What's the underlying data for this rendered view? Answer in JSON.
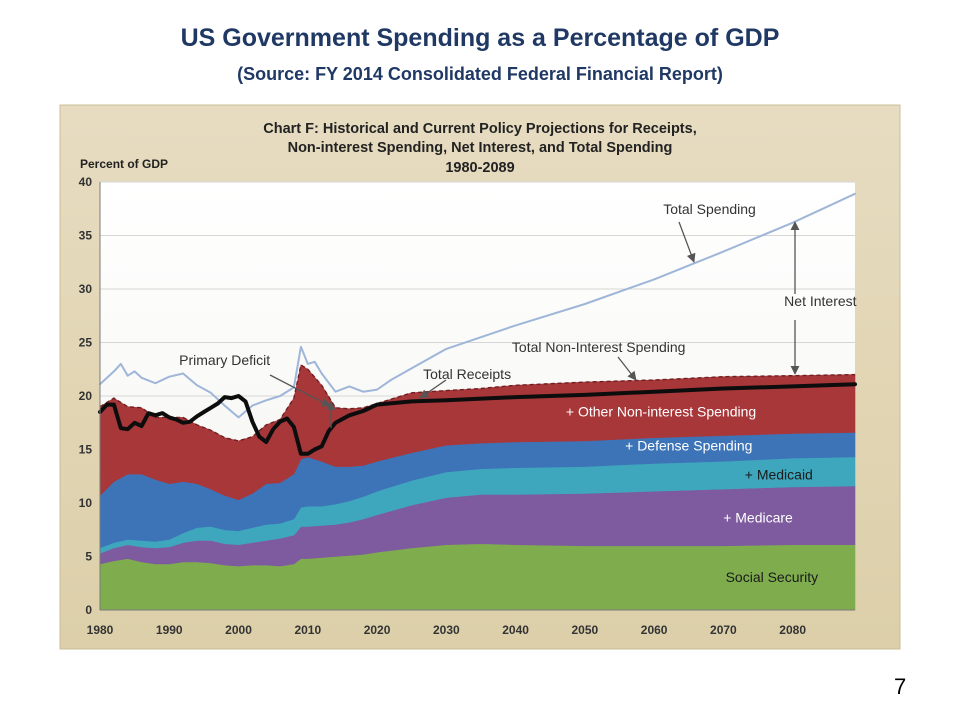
{
  "slide": {
    "title": "US Government Spending as a Percentage of GDP",
    "subtitle": "(Source: FY 2014 Consolidated Federal Financial Report)",
    "page_number": "7"
  },
  "chart_data": {
    "type": "area",
    "title_lines": [
      "Chart F:  Historical and Current Policy Projections for Receipts,",
      "Non-interest Spending, Net Interest, and Total Spending",
      "1980-2089"
    ],
    "ylabel": "Percent of GDP",
    "xlabel": "",
    "xlim": [
      1980,
      2089
    ],
    "ylim": [
      0,
      40
    ],
    "y_ticks": [
      0,
      5,
      10,
      15,
      20,
      25,
      30,
      35,
      40
    ],
    "x_ticks": [
      1980,
      1990,
      2000,
      2010,
      2020,
      2030,
      2040,
      2050,
      2060,
      2070,
      2080
    ],
    "stack_x": [
      1980,
      1982,
      1984,
      1986,
      1988,
      1990,
      1992,
      1994,
      1996,
      1998,
      2000,
      2002,
      2004,
      2006,
      2008,
      2009,
      2010,
      2012,
      2014,
      2016,
      2018,
      2020,
      2025,
      2030,
      2035,
      2040,
      2050,
      2060,
      2070,
      2080,
      2089
    ],
    "stacked_series": [
      {
        "name": "Social Security",
        "color": "#7fad4e",
        "values": [
          4.3,
          4.6,
          4.8,
          4.5,
          4.3,
          4.3,
          4.5,
          4.5,
          4.4,
          4.2,
          4.1,
          4.2,
          4.2,
          4.1,
          4.3,
          4.8,
          4.8,
          4.9,
          5.0,
          5.1,
          5.2,
          5.4,
          5.8,
          6.1,
          6.2,
          6.1,
          6.0,
          6.0,
          6.0,
          6.1,
          6.1
        ]
      },
      {
        "name": "+  Medicare",
        "color": "#7d5b9e",
        "values": [
          1.0,
          1.2,
          1.3,
          1.4,
          1.5,
          1.6,
          1.8,
          2.0,
          2.1,
          2.0,
          2.0,
          2.1,
          2.3,
          2.6,
          2.7,
          3.0,
          3.0,
          3.0,
          3.0,
          3.1,
          3.3,
          3.5,
          4.0,
          4.4,
          4.6,
          4.7,
          4.9,
          5.1,
          5.3,
          5.4,
          5.5
        ]
      },
      {
        "name": "+ Medicaid",
        "color": "#3fa7bd",
        "values": [
          0.5,
          0.5,
          0.5,
          0.6,
          0.6,
          0.7,
          0.9,
          1.2,
          1.3,
          1.3,
          1.3,
          1.4,
          1.5,
          1.4,
          1.5,
          1.8,
          1.9,
          1.8,
          1.9,
          2.0,
          2.1,
          2.2,
          2.3,
          2.4,
          2.4,
          2.5,
          2.5,
          2.6,
          2.6,
          2.7,
          2.7
        ]
      },
      {
        "name": "+ Defense Spending",
        "color": "#3d74b8",
        "values": [
          4.9,
          5.7,
          6.1,
          6.2,
          5.8,
          5.2,
          4.8,
          4.1,
          3.5,
          3.2,
          2.9,
          3.2,
          3.8,
          3.8,
          4.2,
          4.5,
          4.6,
          4.2,
          3.5,
          3.2,
          2.9,
          2.8,
          2.6,
          2.5,
          2.4,
          2.4,
          2.4,
          2.4,
          2.4,
          2.3,
          2.3
        ]
      },
      {
        "name": "+ Other Non-interest Spending",
        "color": "#a8373a",
        "values": [
          8.3,
          7.8,
          6.3,
          6.2,
          5.8,
          6.2,
          6.0,
          5.5,
          5.5,
          5.4,
          5.5,
          5.3,
          5.5,
          5.9,
          7.1,
          8.8,
          8.2,
          7.1,
          5.5,
          5.4,
          5.4,
          5.4,
          5.6,
          5.1,
          5.1,
          5.3,
          5.5,
          5.4,
          5.5,
          5.4,
          5.4
        ]
      }
    ],
    "total_receipts": {
      "name": "Total Receipts",
      "color": "#0d0d0d",
      "x": [
        1980,
        1981,
        1982,
        1983,
        1984,
        1985,
        1986,
        1987,
        1988,
        1989,
        1990,
        1991,
        1992,
        1993,
        1994,
        1995,
        1996,
        1997,
        1998,
        1999,
        2000,
        2001,
        2002,
        2003,
        2004,
        2005,
        2006,
        2007,
        2008,
        2009,
        2010,
        2011,
        2012,
        2013,
        2014,
        2016,
        2018,
        2020,
        2025,
        2030,
        2040,
        2050,
        2060,
        2070,
        2080,
        2089
      ],
      "values": [
        18.5,
        19.2,
        19.2,
        17.0,
        16.9,
        17.5,
        17.2,
        18.4,
        18.2,
        18.4,
        18.0,
        17.8,
        17.5,
        17.6,
        18.1,
        18.5,
        18.9,
        19.3,
        19.9,
        19.8,
        20.0,
        19.5,
        17.6,
        16.2,
        15.7,
        16.9,
        17.6,
        17.9,
        17.1,
        14.6,
        14.6,
        15.0,
        15.3,
        16.7,
        17.5,
        18.2,
        18.6,
        19.2,
        19.5,
        19.6,
        19.9,
        20.1,
        20.4,
        20.7,
        20.9,
        21.1
      ]
    },
    "total_spending": {
      "name": "Total Spending",
      "color": "#9fb6d9",
      "x": [
        1980,
        1982,
        1983,
        1984,
        1985,
        1986,
        1988,
        1990,
        1992,
        1994,
        1996,
        1998,
        2000,
        2002,
        2004,
        2006,
        2008,
        2009,
        2010,
        2011,
        2012,
        2014,
        2016,
        2018,
        2020,
        2022,
        2025,
        2030,
        2040,
        2050,
        2060,
        2070,
        2080,
        2089
      ],
      "values": [
        21.1,
        22.3,
        23.0,
        21.9,
        22.3,
        21.7,
        21.2,
        21.8,
        22.1,
        21.0,
        20.3,
        19.1,
        18.0,
        19.1,
        19.6,
        20.0,
        20.8,
        24.6,
        23.0,
        23.2,
        22.1,
        20.4,
        20.9,
        20.4,
        20.6,
        21.5,
        22.6,
        24.4,
        26.6,
        28.6,
        30.9,
        33.5,
        36.2,
        38.9
      ]
    },
    "annotations": [
      {
        "text": "Total Spending",
        "x": 2068,
        "y": 37.0
      },
      {
        "text": "Net Interest",
        "x": 2084,
        "y": 28.4
      },
      {
        "text": "Total Non-Interest Spending",
        "x": 2052,
        "y": 24.1
      },
      {
        "text": "Total Receipts",
        "x": 2033,
        "y": 21.6
      },
      {
        "text": "Primary Deficit",
        "x": 1998,
        "y": 22.9
      },
      {
        "text": "+ Other Non-interest Spending",
        "x": 2061,
        "y": 18.1
      },
      {
        "text": "+ Defense Spending",
        "x": 2065,
        "y": 14.9
      },
      {
        "text": "+ Medicaid",
        "x": 2078,
        "y": 12.2
      },
      {
        "text": "+  Medicare",
        "x": 2075,
        "y": 8.2
      },
      {
        "text": "Social Security",
        "x": 2077,
        "y": 2.6
      }
    ]
  }
}
